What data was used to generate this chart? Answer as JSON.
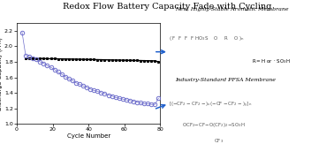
{
  "title": "Redox Flow Battery Capacity Fade with Cycling",
  "xlabel": "Cycle Number",
  "ylabel": "Discharge Capacity (A h)",
  "xlim": [
    0,
    80
  ],
  "ylim": [
    1.0,
    2.3
  ],
  "yticks": [
    1.0,
    1.2,
    1.4,
    1.6,
    1.8,
    2.0,
    2.2
  ],
  "xticks": [
    0,
    20,
    40,
    60,
    80
  ],
  "stable_line_color": "#000000",
  "fade_line_color": "#7070cc",
  "arrow_color": "#2060cc",
  "label_aromatic": "New, Highly-Stable Aromatic Membrane",
  "label_pfsa": "Industry-Standard PFSA Membrane",
  "stable_x": [
    5,
    7,
    9,
    11,
    13,
    15,
    17,
    19,
    21,
    23,
    25,
    27,
    29,
    31,
    33,
    35,
    37,
    39,
    41,
    43,
    45,
    47,
    49,
    51,
    53,
    55,
    57,
    59,
    61,
    63,
    65,
    67,
    69,
    71,
    73,
    75,
    77,
    79
  ],
  "stable_y": [
    1.84,
    1.845,
    1.845,
    1.84,
    1.842,
    1.842,
    1.84,
    1.84,
    1.84,
    1.838,
    1.838,
    1.836,
    1.836,
    1.835,
    1.834,
    1.833,
    1.832,
    1.831,
    1.83,
    1.829,
    1.828,
    1.827,
    1.826,
    1.825,
    1.824,
    1.823,
    1.822,
    1.821,
    1.82,
    1.819,
    1.818,
    1.817,
    1.816,
    1.815,
    1.814,
    1.813,
    1.812,
    1.8
  ],
  "fade_x": [
    3,
    5,
    7,
    9,
    11,
    13,
    15,
    17,
    19,
    21,
    23,
    25,
    27,
    29,
    31,
    33,
    35,
    37,
    39,
    41,
    43,
    45,
    47,
    49,
    51,
    53,
    55,
    57,
    59,
    61,
    63,
    65,
    67,
    69,
    71,
    73,
    75,
    77,
    79
  ],
  "fade_y": [
    2.18,
    1.88,
    1.87,
    1.85,
    1.83,
    1.8,
    1.78,
    1.75,
    1.73,
    1.7,
    1.67,
    1.64,
    1.61,
    1.58,
    1.56,
    1.53,
    1.51,
    1.49,
    1.47,
    1.45,
    1.43,
    1.42,
    1.4,
    1.39,
    1.37,
    1.36,
    1.34,
    1.33,
    1.32,
    1.31,
    1.3,
    1.29,
    1.28,
    1.27,
    1.26,
    1.26,
    1.25,
    1.25,
    1.33
  ],
  "background_color": "#ffffff"
}
